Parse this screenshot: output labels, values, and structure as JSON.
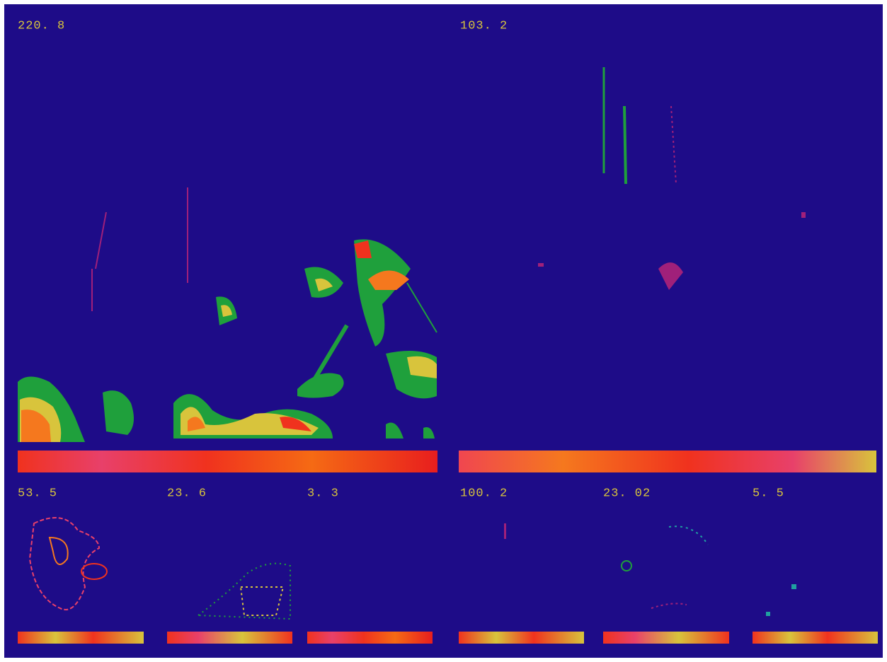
{
  "panels": [
    {
      "label": "220. 8"
    },
    {
      "label": "103. 2"
    },
    {
      "label": "53. 5"
    },
    {
      "label": "23. 6"
    },
    {
      "label": "3. 3"
    },
    {
      "label": "100. 2"
    },
    {
      "label": "23. 02"
    },
    {
      "label": "5. 5"
    }
  ]
}
